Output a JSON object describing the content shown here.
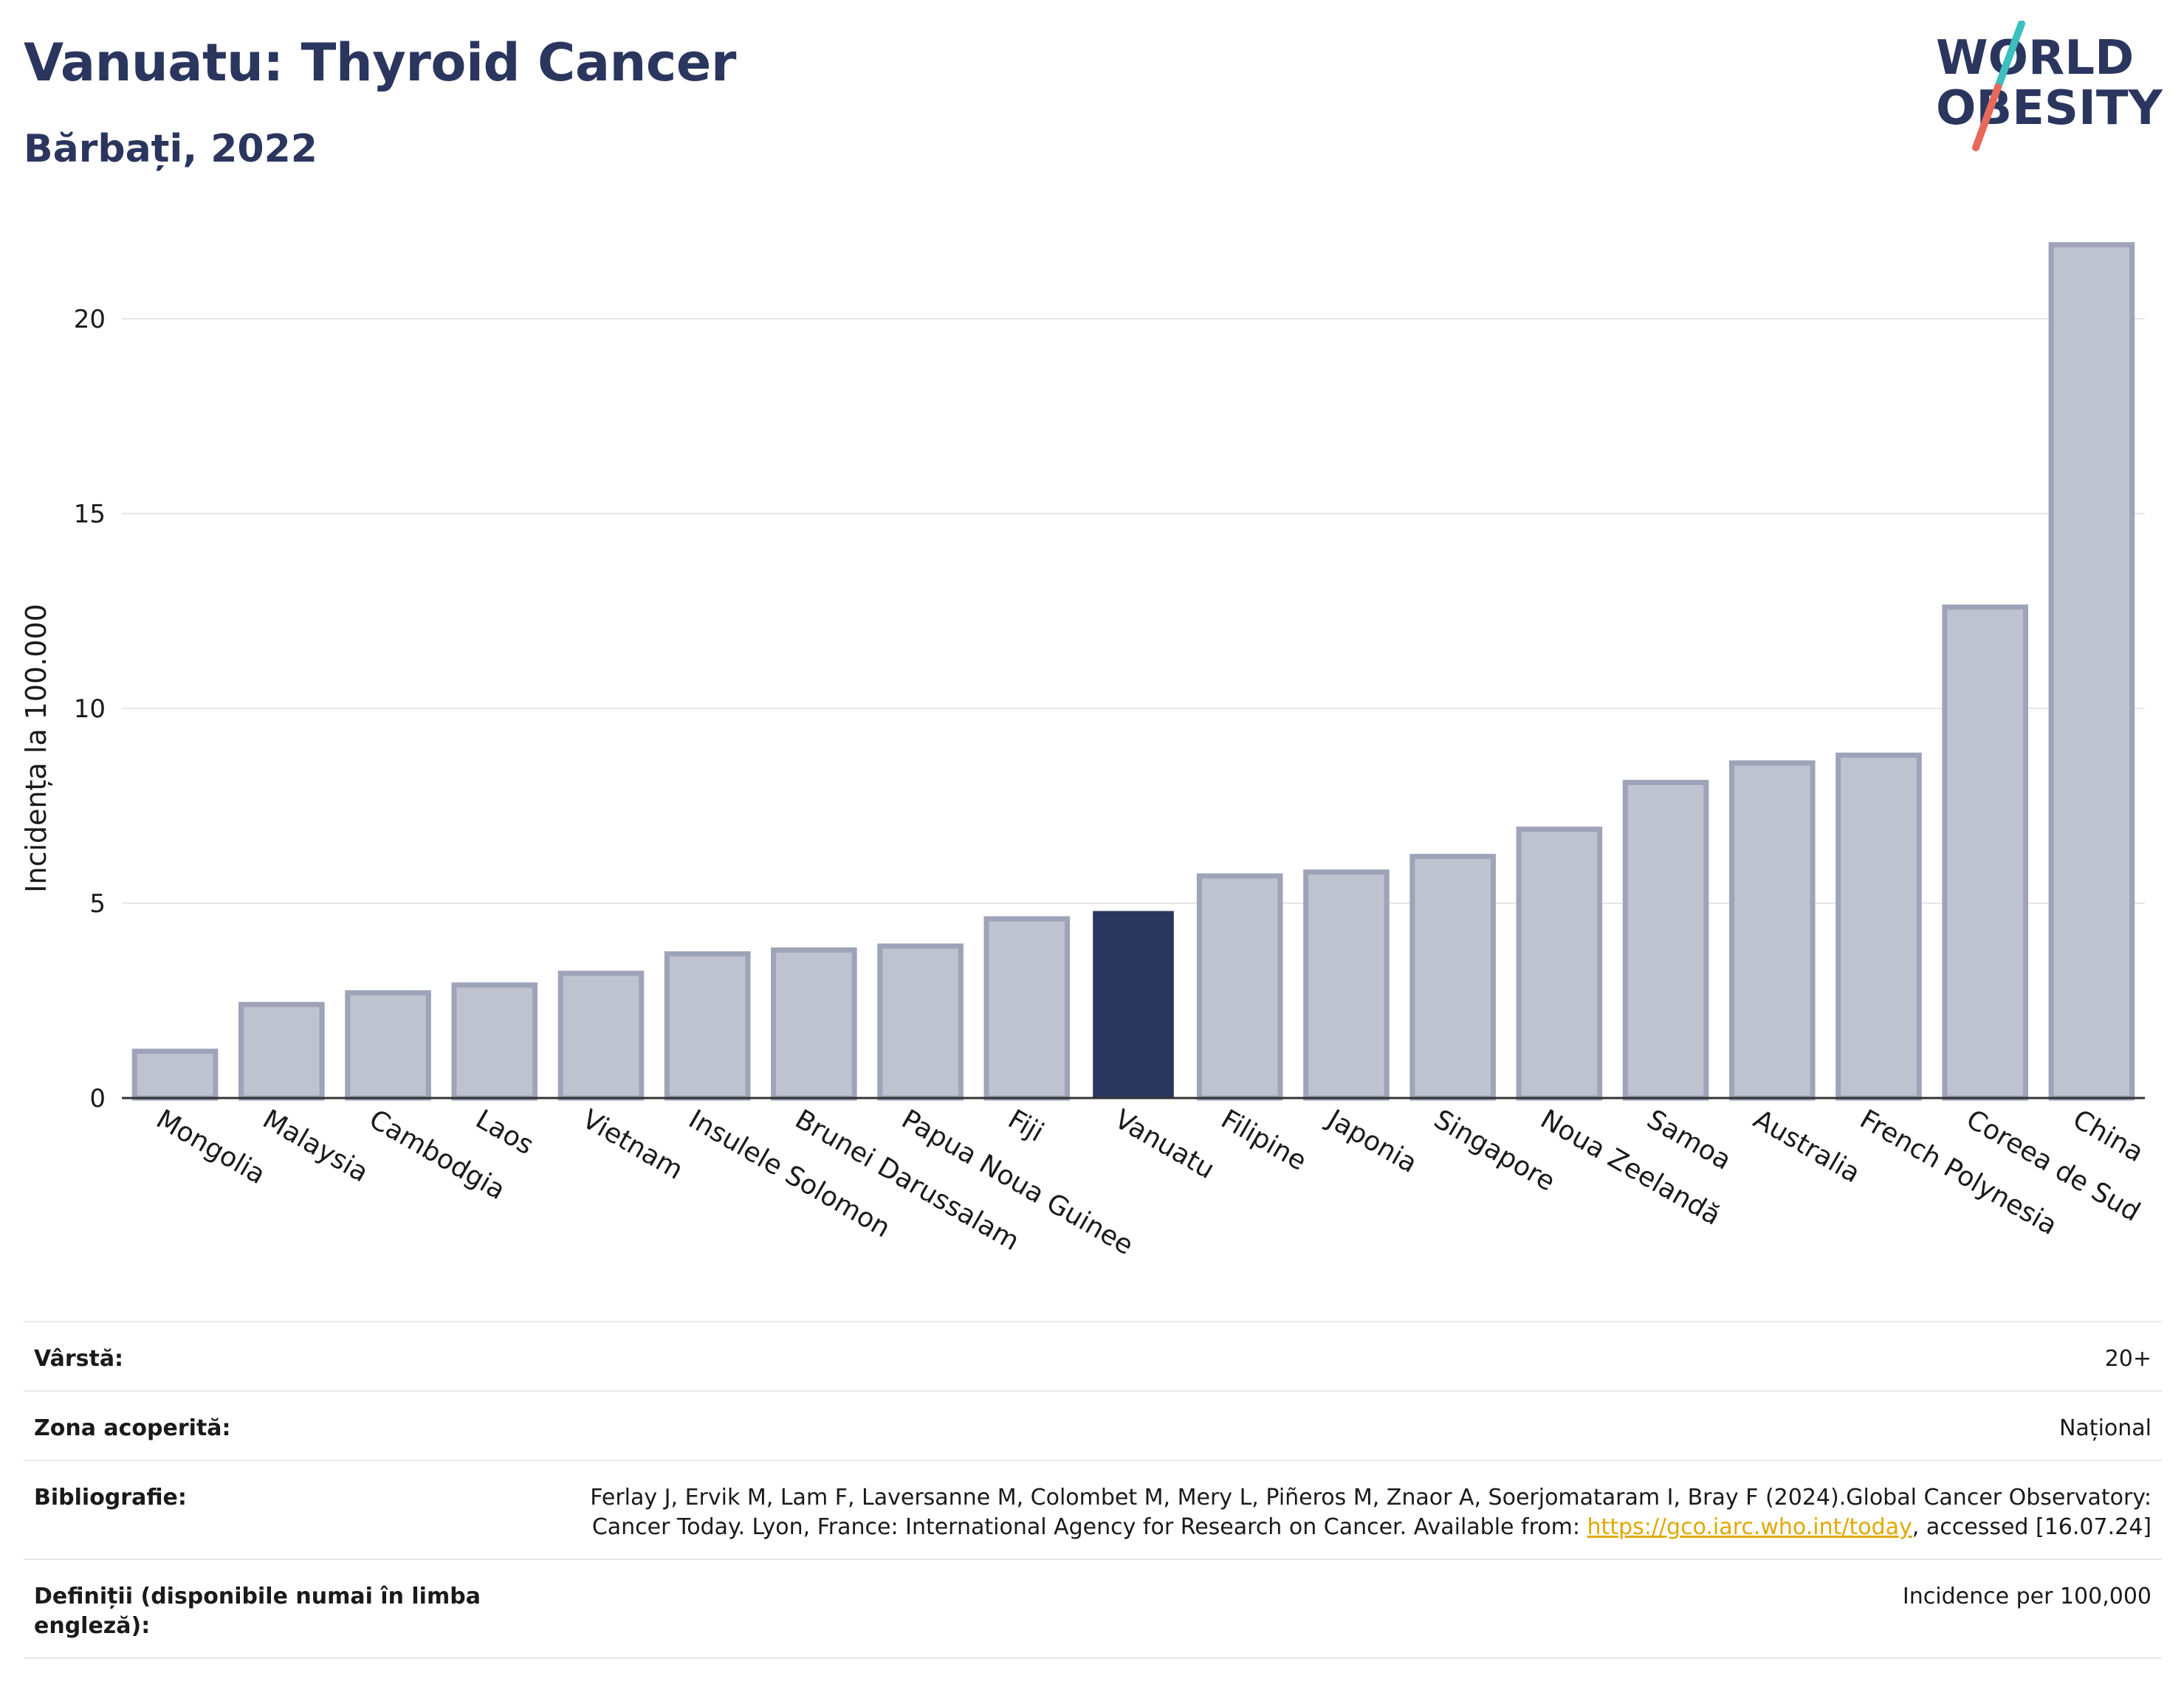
{
  "header": {
    "title": "Vanuatu: Thyroid Cancer",
    "subtitle": "Bărbați, 2022"
  },
  "logo": {
    "line1": "WORLD",
    "line2": "OBESITY",
    "colors": {
      "text": "#2b365f",
      "slash_teal": "#3bbfbf",
      "slash_coral": "#e8695a"
    }
  },
  "chart_data": {
    "type": "bar",
    "title": "Vanuatu: Thyroid Cancer",
    "subtitle": "Bărbați, 2022",
    "xlabel": "",
    "ylabel": "Incidența la 100.000",
    "ylim": [
      0,
      22.5
    ],
    "yticks": [
      0,
      5,
      10,
      15,
      20
    ],
    "grid": true,
    "categories": [
      "Mongolia",
      "Malaysia",
      "Cambodgia",
      "Laos",
      "Vietnam",
      "Insulele Solomon",
      "Brunei Darussalam",
      "Papua Noua Guinee",
      "Fiji",
      "Vanuatu",
      "Filipine",
      "Japonia",
      "Singapore",
      "Noua Zeelandă",
      "Samoa",
      "Australia",
      "French Polynesia",
      "Coreea de Sud",
      "China"
    ],
    "values": [
      1.2,
      2.4,
      2.7,
      2.9,
      3.2,
      3.7,
      3.8,
      3.9,
      4.6,
      4.8,
      5.7,
      5.8,
      6.2,
      6.9,
      8.1,
      8.6,
      8.8,
      12.6,
      21.9
    ],
    "highlight": "Vanuatu",
    "colors": {
      "bar": "#bfc3cf",
      "bar_border": "#9ea3b8",
      "highlight": "#2b365f",
      "axis": "#333333",
      "grid": "#e6e6ea"
    }
  },
  "info": {
    "age_label": "Vârstă:",
    "age_value": "20+",
    "coverage_label": "Zona acoperită:",
    "coverage_value": "Național",
    "bibliography_label": "Bibliografie:",
    "bibliography_text1": "Ferlay J, Ervik M, Lam F, Laversanne M, Colombet M, Mery L, Piñeros M, Znaor A, Soerjomataram I, Bray F (2024).Global Cancer Observatory: Cancer Today. Lyon, France: International Agency for Research on Cancer. Available from: ",
    "bibliography_link": "https://gco.iarc.who.int/today",
    "bibliography_text2": ", accessed [16.07.24]",
    "definitions_label": "Definiții (disponibile numai în limba engleză):",
    "definitions_value": "Incidence per 100,000"
  }
}
